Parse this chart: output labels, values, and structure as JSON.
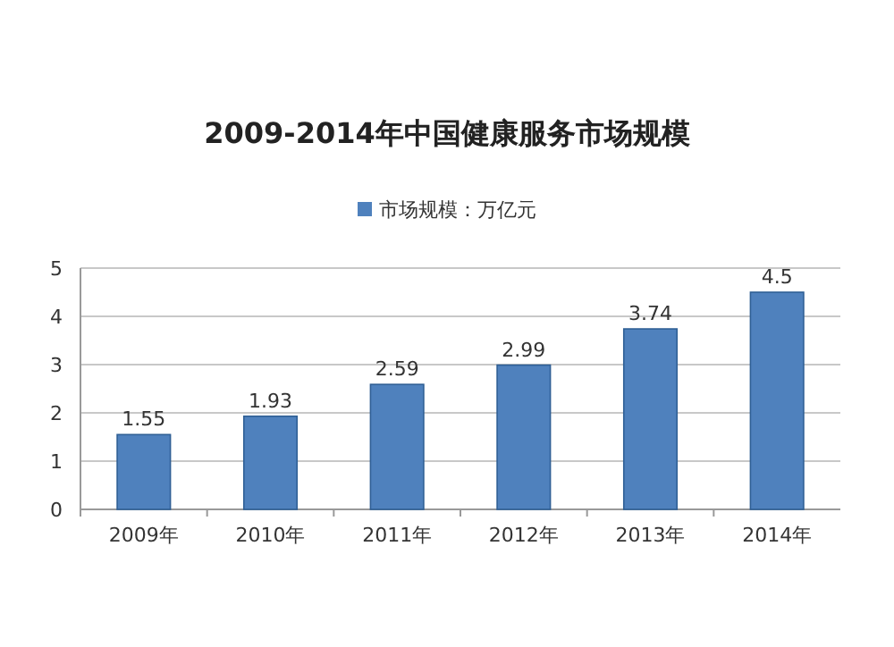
{
  "chart_data": {
    "type": "bar",
    "title": "2009-2014年中国健康服务市场规模",
    "categories": [
      "2009年",
      "2010年",
      "2011年",
      "2012年",
      "2013年",
      "2014年"
    ],
    "series": [
      {
        "name": "市场规模：万亿元",
        "color": "#4f81bd",
        "values": [
          1.55,
          1.93,
          2.59,
          2.99,
          3.74,
          4.5
        ]
      }
    ],
    "ylim": [
      0,
      5
    ],
    "yticks": [
      0,
      1,
      2,
      3,
      4,
      5
    ],
    "grid": "y",
    "legend": "top",
    "data_labels": true
  }
}
